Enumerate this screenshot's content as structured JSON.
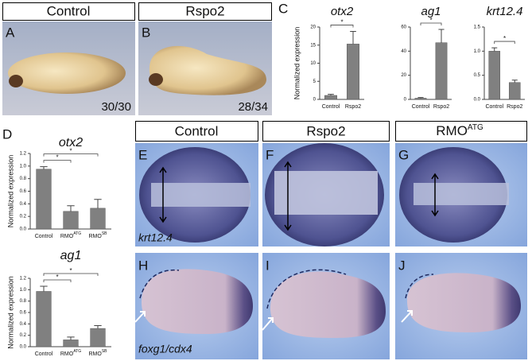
{
  "figure": {
    "panel_letters": [
      "A",
      "B",
      "C",
      "D",
      "E",
      "F",
      "G",
      "H",
      "I",
      "J"
    ],
    "top_headers": [
      "Control",
      "Rspo2"
    ],
    "counts": [
      "30/30",
      "28/34"
    ],
    "headers": [
      {
        "text": "Control"
      },
      {
        "text": "Rspo2"
      },
      {
        "text": "RMO",
        "sup": "ATG"
      }
    ],
    "stains": [
      "krt12.4",
      "foxg1/cdx4"
    ]
  },
  "chart_data": [
    {
      "type": "bar",
      "title": "otx2",
      "ylabel": "Normalized expression",
      "categories": [
        "Control",
        "Rspo2"
      ],
      "values": [
        1.1,
        15.3
      ],
      "errors": [
        0.3,
        3.5
      ],
      "color": "#808080",
      "ylim": [
        0,
        20
      ],
      "yticks": [
        0,
        5,
        10,
        15,
        20
      ],
      "annotations": [
        "*"
      ]
    },
    {
      "type": "bar",
      "title": "ag1",
      "categories": [
        "Control",
        "Rspo2"
      ],
      "values": [
        1,
        47
      ],
      "errors": [
        0.6,
        11
      ],
      "color": "#808080",
      "ylim": [
        0,
        60
      ],
      "yticks": [
        0,
        20,
        40,
        60
      ],
      "annotations": [
        "*"
      ]
    },
    {
      "type": "bar",
      "title": "krt12.4",
      "categories": [
        "Control",
        "Rspo2"
      ],
      "values": [
        1.0,
        0.35
      ],
      "errors": [
        0.07,
        0.05
      ],
      "color": "#808080",
      "ylim": [
        0,
        1.5
      ],
      "yticks": [
        {
          "value": 0,
          "label": "0.0"
        },
        {
          "value": 0.5,
          "label": "0.5"
        },
        {
          "value": 1,
          "label": "1.0"
        },
        {
          "value": 1.5,
          "label": "1.5"
        }
      ],
      "annotations": [
        "*"
      ]
    },
    {
      "type": "bar",
      "title": "otx2",
      "ylabel": "Normalized expression",
      "categories": [
        "Control",
        "RMO",
        "RMO"
      ],
      "category_superscripts": [
        null,
        "ATG",
        "SB"
      ],
      "values": [
        0.95,
        0.28,
        0.33
      ],
      "errors": [
        0.04,
        0.09,
        0.14
      ],
      "color": "#808080",
      "ylim": [
        0,
        1.2
      ],
      "yticks": [
        {
          "value": 0,
          "label": "0.0"
        },
        {
          "value": 0.2,
          "label": "0.2"
        },
        {
          "value": 0.4,
          "label": "0.4"
        },
        {
          "value": 0.6,
          "label": "0.6"
        },
        {
          "value": 0.8,
          "label": "0.8"
        },
        {
          "value": 1,
          "label": "1.0"
        },
        {
          "value": 1.2,
          "label": "1.2"
        }
      ],
      "annotations": [
        "*",
        "*"
      ]
    },
    {
      "type": "bar",
      "title": "ag1",
      "ylabel": "Normalized expression",
      "categories": [
        "Control",
        "RMO",
        "RMO"
      ],
      "category_superscripts": [
        null,
        "ATG",
        "SB"
      ],
      "values": [
        0.97,
        0.12,
        0.32
      ],
      "errors": [
        0.09,
        0.05,
        0.05
      ],
      "color": "#808080",
      "ylim": [
        0,
        1.2
      ],
      "yticks": [
        {
          "value": 0,
          "label": "0.0"
        },
        {
          "value": 0.2,
          "label": "0.2"
        },
        {
          "value": 0.4,
          "label": "0.4"
        },
        {
          "value": 0.6,
          "label": "0.6"
        },
        {
          "value": 0.8,
          "label": "0.8"
        },
        {
          "value": 1,
          "label": "1.0"
        },
        {
          "value": 1.2,
          "label": "1.2"
        }
      ],
      "annotations": [
        "*",
        "*"
      ]
    }
  ]
}
